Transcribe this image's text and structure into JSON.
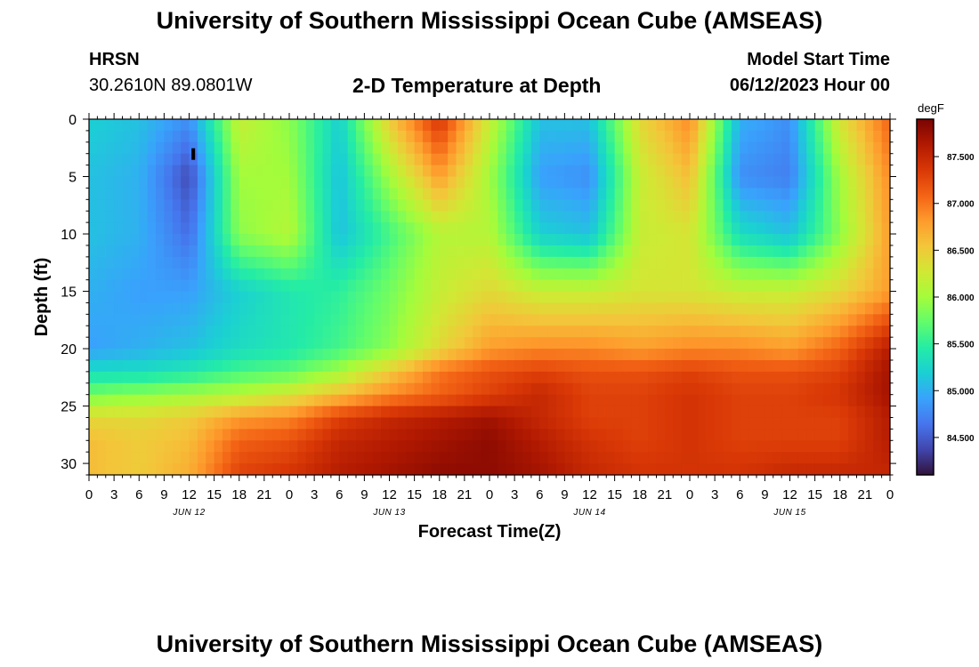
{
  "header": {
    "title_top": "University of Southern Mississippi Ocean Cube (AMSEAS)",
    "title_bottom": "University of Southern Mississippi Ocean Cube (AMSEAS)",
    "station": "HRSN",
    "coords": "30.2610N  89.0801W",
    "subtitle": "2-D Temperature at Depth",
    "model_start_label": "Model Start Time",
    "model_start_value": "06/12/2023 Hour 00"
  },
  "chart_data": {
    "type": "heatmap",
    "xlabel": "Forecast Time(Z)",
    "ylabel": "Depth (ft)",
    "x_tick_labels": [
      "0",
      "3",
      "6",
      "9",
      "12",
      "15",
      "18",
      "21",
      "0",
      "3",
      "6",
      "9",
      "12",
      "15",
      "18",
      "21",
      "0",
      "3",
      "6",
      "9",
      "12",
      "15",
      "18",
      "21",
      "0",
      "3",
      "6",
      "9",
      "12",
      "15",
      "18",
      "21",
      "0"
    ],
    "x_range_hours": [
      0,
      96
    ],
    "date_labels": [
      {
        "label": "JUN 12",
        "hour": 12
      },
      {
        "label": "JUN 13",
        "hour": 36
      },
      {
        "label": "JUN 14",
        "hour": 60
      },
      {
        "label": "JUN 15",
        "hour": 84
      }
    ],
    "y_ticks": [
      0,
      5,
      10,
      15,
      20,
      25,
      30
    ],
    "y_range_ft": [
      0,
      31
    ],
    "colorbar": {
      "unit": "degF",
      "ticks": [
        "87.500",
        "87.000",
        "86.500",
        "86.000",
        "85.500",
        "85.000",
        "84.500"
      ],
      "range": [
        84.1,
        87.9
      ],
      "colors": [
        "#30123b",
        "#4145ab",
        "#4675ed",
        "#39a2fc",
        "#1bcfd4",
        "#24eca6",
        "#61fc6c",
        "#a4fc3b",
        "#d1e834",
        "#f3c63a",
        "#fe9b2d",
        "#f36315",
        "#d93806",
        "#b11901",
        "#7a0402"
      ]
    },
    "grid_hours": [
      0,
      6,
      12,
      18,
      24,
      30,
      36,
      42,
      48,
      54,
      60,
      66,
      72,
      78,
      84,
      90,
      96
    ],
    "grid_depths_ft": [
      0,
      5,
      10,
      15,
      20,
      22,
      24,
      26,
      28,
      31
    ],
    "temperature_degF": [
      [
        85.2,
        85.1,
        84.8,
        86.2,
        85.9,
        85.2,
        86.5,
        87.4,
        86.2,
        85.1,
        85.1,
        86.4,
        86.9,
        85.0,
        84.8,
        86.3,
        87.1
      ],
      [
        85.1,
        85.0,
        84.4,
        86.0,
        86.0,
        85.1,
        86.0,
        86.8,
        86.0,
        84.9,
        84.8,
        86.2,
        86.6,
        84.8,
        84.7,
        86.0,
        86.9
      ],
      [
        85.1,
        85.0,
        84.6,
        85.9,
        86.1,
        85.1,
        85.6,
        86.1,
        86.1,
        85.2,
        85.1,
        86.2,
        86.3,
        85.3,
        85.1,
        85.9,
        86.8
      ],
      [
        85.0,
        84.9,
        84.9,
        85.2,
        85.4,
        85.5,
        85.8,
        86.2,
        86.4,
        86.2,
        86.2,
        86.3,
        86.3,
        86.2,
        86.2,
        86.4,
        86.8
      ],
      [
        84.9,
        85.0,
        85.1,
        85.3,
        85.4,
        85.6,
        85.9,
        86.4,
        86.8,
        86.9,
        86.9,
        86.8,
        86.9,
        86.9,
        86.8,
        87.1,
        87.6
      ],
      [
        85.3,
        85.3,
        85.4,
        85.6,
        85.7,
        86.0,
        86.5,
        87.0,
        87.2,
        87.3,
        87.2,
        87.2,
        87.3,
        87.2,
        87.2,
        87.3,
        87.7
      ],
      [
        85.8,
        85.9,
        86.0,
        86.1,
        86.3,
        86.6,
        86.9,
        87.1,
        87.3,
        87.5,
        87.3,
        87.3,
        87.4,
        87.3,
        87.3,
        87.4,
        87.7
      ],
      [
        86.4,
        86.4,
        86.5,
        86.8,
        86.9,
        87.3,
        87.5,
        87.6,
        87.7,
        87.5,
        87.3,
        87.3,
        87.4,
        87.3,
        87.3,
        87.3,
        87.6
      ],
      [
        86.6,
        86.5,
        86.6,
        87.1,
        87.2,
        87.5,
        87.6,
        87.7,
        87.8,
        87.6,
        87.4,
        87.3,
        87.4,
        87.3,
        87.3,
        87.3,
        87.6
      ],
      [
        86.6,
        86.5,
        86.7,
        87.3,
        87.4,
        87.6,
        87.7,
        87.8,
        87.8,
        87.7,
        87.5,
        87.4,
        87.4,
        87.4,
        87.5,
        87.5,
        87.5
      ]
    ],
    "marker": {
      "hour": 12.5,
      "depth_ft": 3
    }
  }
}
